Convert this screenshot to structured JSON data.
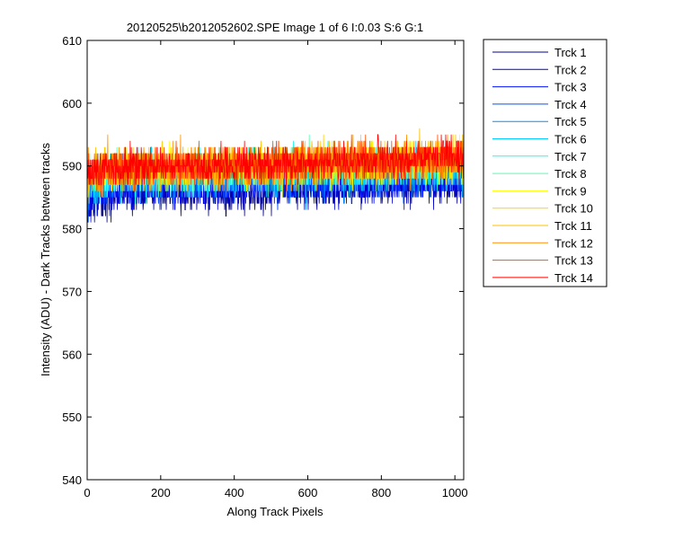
{
  "chart_data": {
    "type": "line",
    "title": "20120525\\b2012052602.SPE  Image 1 of 6  I:0.03  S:6  G:1",
    "xlabel": "Along Track Pixels",
    "ylabel": "Intensity (ADU) - Dark Tracks between tracks",
    "xlim": [
      0,
      1024
    ],
    "ylim": [
      540,
      610
    ],
    "xticks": [
      0,
      200,
      400,
      600,
      800,
      1000
    ],
    "yticks": [
      540,
      550,
      560,
      570,
      580,
      590,
      600,
      610
    ],
    "grid": false,
    "legend_placement": "outside-top-right",
    "series": [
      {
        "name": "Trck 1",
        "color": "#00008f",
        "mean": 586.3,
        "spread": 2.8,
        "x": [
          0,
          100,
          200,
          300,
          400,
          500,
          600,
          700,
          800,
          900,
          1000,
          1023
        ],
        "values": [
          584.5,
          586,
          586,
          586,
          586,
          586,
          586.5,
          586.5,
          587,
          587,
          587,
          587
        ]
      },
      {
        "name": "Trck 2",
        "color": "#0000cf",
        "mean": 586.8,
        "spread": 2.8,
        "x": [
          0,
          100,
          200,
          300,
          400,
          500,
          600,
          700,
          800,
          900,
          1000,
          1023
        ],
        "values": [
          585,
          586.5,
          586.5,
          586.5,
          586.5,
          587,
          587,
          587,
          587.5,
          587.5,
          587.5,
          587.5
        ]
      },
      {
        "name": "Trck 3",
        "color": "#0010ff",
        "mean": 587.2,
        "spread": 2.8,
        "x": [
          0,
          100,
          200,
          300,
          400,
          500,
          600,
          700,
          800,
          900,
          1000,
          1023
        ],
        "values": [
          585.5,
          587,
          587,
          587,
          587,
          587.5,
          587.5,
          587.5,
          588,
          588,
          588,
          588
        ]
      },
      {
        "name": "Trck 4",
        "color": "#0050ff",
        "mean": 587.6,
        "spread": 2.8,
        "x": [
          0,
          100,
          200,
          300,
          400,
          500,
          600,
          700,
          800,
          900,
          1000,
          1023
        ],
        "values": [
          586,
          587.5,
          587.5,
          587.5,
          587.5,
          588,
          588,
          588,
          588.5,
          588.5,
          588.5,
          588.5
        ]
      },
      {
        "name": "Trck 5",
        "color": "#0090ff",
        "mean": 588.0,
        "spread": 2.8,
        "x": [
          0,
          100,
          200,
          300,
          400,
          500,
          600,
          700,
          800,
          900,
          1000,
          1023
        ],
        "values": [
          586.5,
          588,
          588,
          588,
          588,
          588.5,
          588.5,
          588.5,
          589,
          589,
          589,
          589
        ]
      },
      {
        "name": "Trck 6",
        "color": "#00d0ff",
        "mean": 588.3,
        "spread": 2.8,
        "x": [
          0,
          100,
          200,
          300,
          400,
          500,
          600,
          700,
          800,
          900,
          1000,
          1023
        ],
        "values": [
          587,
          588.5,
          588.5,
          588.5,
          588.5,
          589,
          589,
          589,
          589.5,
          589.5,
          589.5,
          589.5
        ]
      },
      {
        "name": "Trck 7",
        "color": "#10ffef",
        "mean": 588.7,
        "spread": 2.8,
        "x": [
          0,
          100,
          200,
          300,
          400,
          500,
          600,
          700,
          800,
          900,
          1000,
          1023
        ],
        "values": [
          587.5,
          588.5,
          588.5,
          589,
          589,
          589,
          589.5,
          589.5,
          589.5,
          590,
          590,
          590
        ]
      },
      {
        "name": "Trck 8",
        "color": "#50ffaf",
        "mean": 589.0,
        "spread": 2.8,
        "x": [
          0,
          100,
          200,
          300,
          400,
          500,
          600,
          700,
          800,
          900,
          1000,
          1023
        ],
        "values": [
          588,
          589,
          589,
          589,
          589.5,
          589.5,
          589.5,
          590,
          590,
          590,
          590,
          590
        ]
      },
      {
        "name": "Trck 9",
        "color": "#ffff00",
        "mean": 589.3,
        "spread": 2.8,
        "x": [
          0,
          100,
          200,
          300,
          400,
          500,
          600,
          700,
          800,
          900,
          1000,
          1023
        ],
        "values": [
          588,
          589,
          589,
          589.5,
          589.5,
          589.5,
          590,
          590,
          590,
          590.5,
          590.5,
          590.5
        ]
      },
      {
        "name": "Trck 10",
        "color": "#ffd000",
        "mean": 589.6,
        "spread": 2.8,
        "x": [
          0,
          100,
          200,
          300,
          400,
          500,
          600,
          700,
          800,
          900,
          1000,
          1023
        ],
        "values": [
          588.5,
          589.5,
          589.5,
          589.5,
          590,
          590,
          590,
          590.5,
          590.5,
          590.5,
          591,
          591
        ]
      },
      {
        "name": "Trck 11",
        "color": "#ffc000",
        "mean": 589.8,
        "spread": 2.8,
        "x": [
          0,
          100,
          200,
          300,
          400,
          500,
          600,
          700,
          800,
          900,
          1000,
          1023
        ],
        "values": [
          588.5,
          589.5,
          589.5,
          590,
          590,
          590,
          590.5,
          590.5,
          590.5,
          591,
          591,
          591
        ]
      },
      {
        "name": "Trck 12",
        "color": "#ff9000",
        "mean": 590.0,
        "spread": 2.8,
        "x": [
          0,
          100,
          200,
          300,
          400,
          500,
          600,
          700,
          800,
          900,
          1000,
          1023
        ],
        "values": [
          589,
          589.5,
          589.5,
          590,
          590,
          590,
          590.5,
          590.5,
          590.5,
          591,
          591,
          591
        ]
      },
      {
        "name": "Trck 13",
        "color": "#ff5000",
        "mean": 590.1,
        "spread": 2.8,
        "x": [
          0,
          100,
          200,
          300,
          400,
          500,
          600,
          700,
          800,
          900,
          1000,
          1023
        ],
        "values": [
          589,
          589.5,
          590,
          590,
          590,
          590.5,
          590.5,
          590.5,
          591,
          591,
          591,
          591
        ]
      },
      {
        "name": "Trck 14",
        "color": "#ff0000",
        "mean": 590.2,
        "spread": 2.8,
        "x": [
          0,
          100,
          200,
          300,
          400,
          500,
          600,
          700,
          800,
          900,
          1000,
          1023
        ],
        "values": [
          589,
          589.5,
          590,
          590,
          590,
          590.5,
          590.5,
          591,
          591,
          591,
          591.5,
          591.5
        ]
      }
    ]
  }
}
